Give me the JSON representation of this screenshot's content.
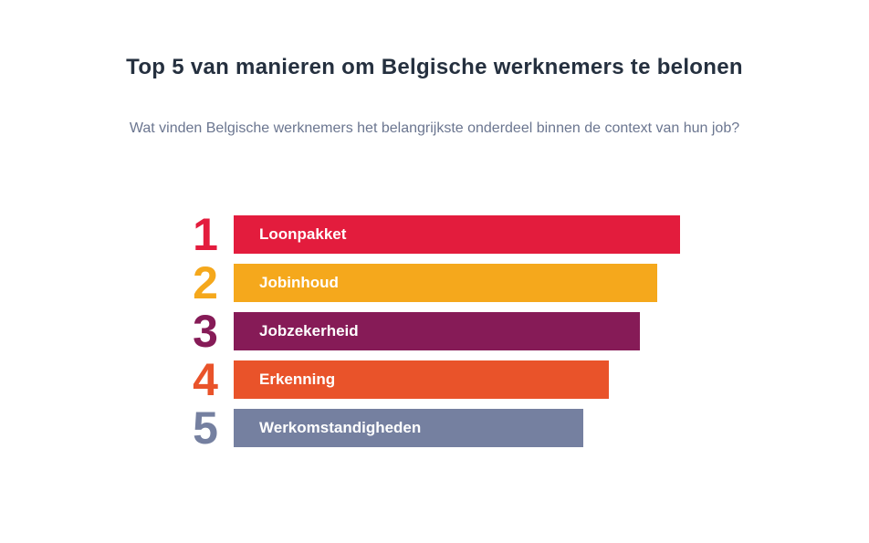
{
  "title": "Top 5 van manieren om Belgische werknemers te belonen",
  "subtitle": "Wat vinden Belgische werknemers het belangrijkste onderdeel binnen de context van hun job?",
  "chart_data": {
    "type": "bar",
    "orientation": "horizontal",
    "title": "Top 5 van manieren om Belgische werknemers te belonen",
    "subtitle": "Wat vinden Belgische werknemers het belangrijkste onderdeel binnen de context van hun job?",
    "ranks": [
      "1",
      "2",
      "3",
      "4",
      "5"
    ],
    "categories": [
      "Loonpakket",
      "Jobinhoud",
      "Jobzekerheid",
      "Erkenning",
      "Werkomstandigheden"
    ],
    "relative_values": [
      1.0,
      0.949,
      0.91,
      0.841,
      0.784
    ],
    "colors": [
      "#e31c3d",
      "#f5a81c",
      "#861b57",
      "#e9532a",
      "#7580a0"
    ],
    "axis": "none",
    "grid": false,
    "legend": "none"
  }
}
